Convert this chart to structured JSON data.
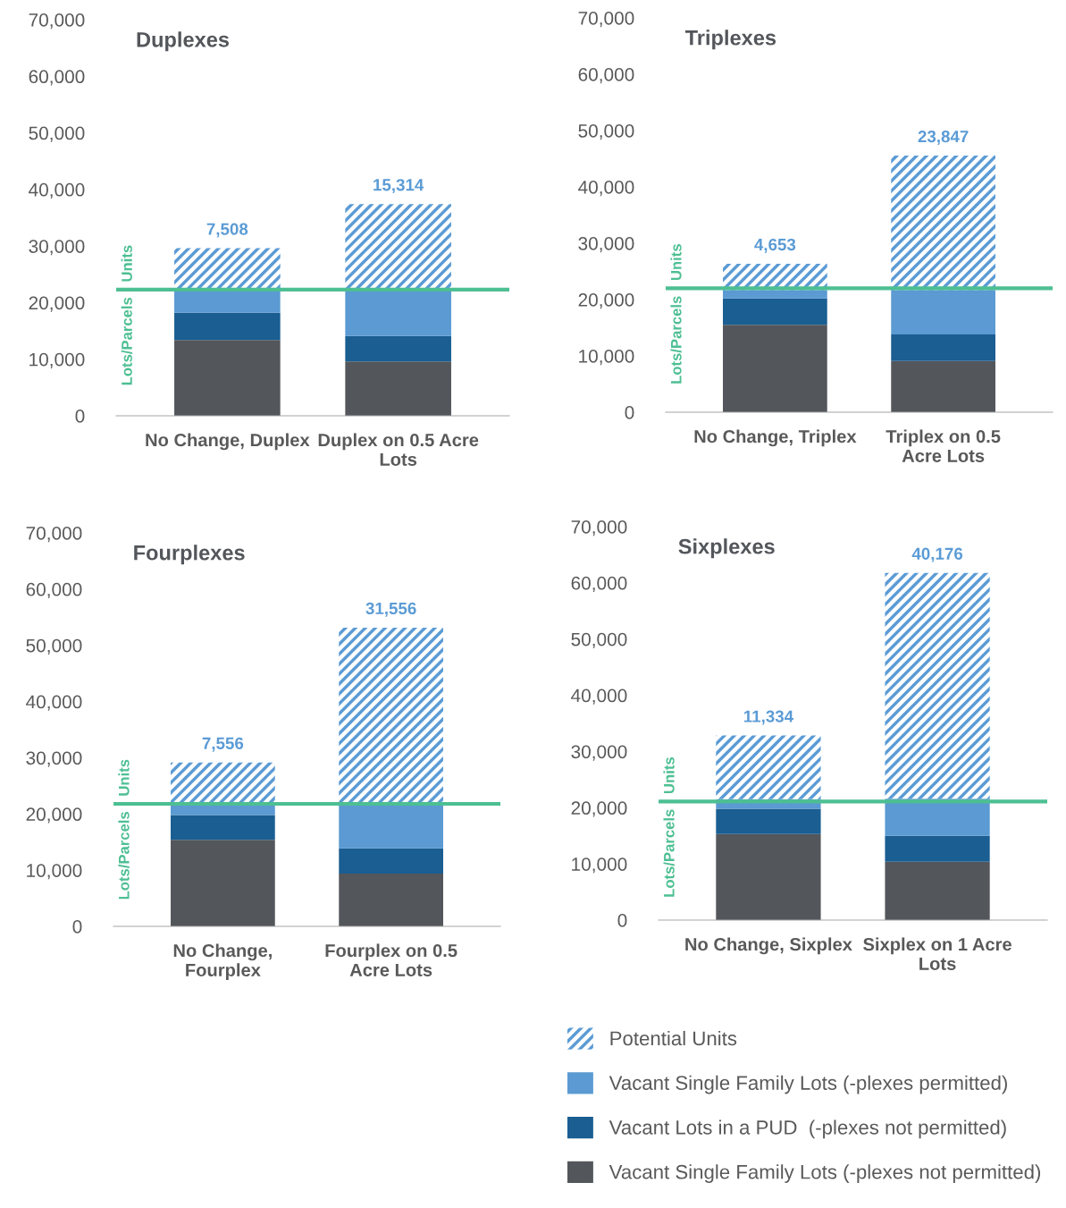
{
  "chart_data": [
    {
      "type": "bar",
      "title": "Duplexes",
      "categories": [
        "No Change, Duplex",
        "Duplex on 0.5 Acre Lots"
      ],
      "stacked": true,
      "ylim": [
        0,
        70000
      ],
      "yticks": [
        {
          "value": 0,
          "label": "0"
        },
        {
          "value": 10000,
          "label": "10,000"
        },
        {
          "value": 20000,
          "label": "20,000"
        },
        {
          "value": 30000,
          "label": "30,000"
        },
        {
          "value": 40000,
          "label": "40,000"
        },
        {
          "value": 50000,
          "label": "50,000"
        },
        {
          "value": 60000,
          "label": "60,000"
        },
        {
          "value": 70000,
          "label": "70,000"
        }
      ],
      "grid": false,
      "legend": "bottom right",
      "series": [
        {
          "name": "Vacant Single Family Lots (-plexes not permitted)",
          "color": "#53565a",
          "values": [
            13400,
            9600
          ]
        },
        {
          "name": "Vacant Lots in a PUD  (-plexes not permitted)",
          "color": "#1a5e92",
          "values": [
            4800,
            4500
          ]
        },
        {
          "name": "Vacant Single Family Lots (-plexes permitted)",
          "color": "#5b9ad2",
          "values": [
            3900,
            8000
          ]
        },
        {
          "name": "Potential Units",
          "color": "#5b9bd5",
          "values": [
            7508,
            15314
          ],
          "value_labels": [
            "7,508",
            "15,314"
          ]
        }
      ],
      "ref_lines": [
        {
          "axis": "y",
          "value": 22300,
          "color": "#4dbf93"
        }
      ],
      "annotations": [
        "Units",
        "Lots/Parcels"
      ]
    },
    {
      "type": "bar",
      "title": "Triplexes",
      "categories": [
        "No Change, Triplex",
        "Triplex on 0.5 Acre Lots"
      ],
      "stacked": true,
      "ylim": [
        0,
        70000
      ],
      "yticks": [
        {
          "value": 0,
          "label": "0"
        },
        {
          "value": 10000,
          "label": "10,000"
        },
        {
          "value": 20000,
          "label": "20,000"
        },
        {
          "value": 30000,
          "label": "30,000"
        },
        {
          "value": 40000,
          "label": "40,000"
        },
        {
          "value": 50000,
          "label": "50,000"
        },
        {
          "value": 60000,
          "label": "60,000"
        },
        {
          "value": 70000,
          "label": "70,000"
        }
      ],
      "grid": false,
      "series": [
        {
          "color": "#53565a",
          "values": [
            15500,
            9100
          ]
        },
        {
          "color": "#1a5e92",
          "values": [
            4700,
            4700
          ]
        },
        {
          "color": "#5b9ad2",
          "values": [
            1500,
            7900
          ]
        },
        {
          "color": "#5b9bd5",
          "values": [
            4653,
            23847
          ],
          "value_labels": [
            "4,653",
            "23,847"
          ]
        }
      ],
      "ref_lines": [
        {
          "axis": "y",
          "value": 22000,
          "color": "#4dbf93"
        }
      ],
      "annotations": [
        "Units",
        "Lots/Parcels"
      ]
    },
    {
      "type": "bar",
      "title": "Fourplexes",
      "categories": [
        "No Change, Fourplex",
        "Fourplex on 0.5 Acre Lots"
      ],
      "stacked": true,
      "ylim": [
        0,
        70000
      ],
      "yticks": [
        {
          "value": 0,
          "label": "0"
        },
        {
          "value": 10000,
          "label": "10,000"
        },
        {
          "value": 20000,
          "label": "20,000"
        },
        {
          "value": 30000,
          "label": "30,000"
        },
        {
          "value": 40000,
          "label": "40,000"
        },
        {
          "value": 50000,
          "label": "50,000"
        },
        {
          "value": 60000,
          "label": "60,000"
        },
        {
          "value": 70000,
          "label": "70,000"
        }
      ],
      "grid": false,
      "series": [
        {
          "color": "#53565a",
          "values": [
            15400,
            9400
          ]
        },
        {
          "color": "#1a5e92",
          "values": [
            4400,
            4500
          ]
        },
        {
          "color": "#5b9ad2",
          "values": [
            1800,
            7700
          ]
        },
        {
          "color": "#5b9bd5",
          "values": [
            7556,
            31556
          ],
          "value_labels": [
            "7,556",
            "31,556"
          ]
        }
      ],
      "ref_lines": [
        {
          "axis": "y",
          "value": 21800,
          "color": "#4dbf93"
        }
      ],
      "annotations": [
        "Units",
        "Lots/Parcels"
      ]
    },
    {
      "type": "bar",
      "title": "Sixplexes",
      "categories": [
        "No Change, Sixplex",
        "Sixplex on 1 Acre Lots"
      ],
      "stacked": true,
      "ylim": [
        0,
        70000
      ],
      "yticks": [
        {
          "value": 0,
          "label": "0"
        },
        {
          "value": 10000,
          "label": "10,000"
        },
        {
          "value": 20000,
          "label": "20,000"
        },
        {
          "value": 30000,
          "label": "30,000"
        },
        {
          "value": 40000,
          "label": "40,000"
        },
        {
          "value": 50000,
          "label": "50,000"
        },
        {
          "value": 60000,
          "label": "60,000"
        },
        {
          "value": 70000,
          "label": "70,000"
        }
      ],
      "grid": false,
      "series": [
        {
          "color": "#53565a",
          "values": [
            15300,
            10400
          ]
        },
        {
          "color": "#1a5e92",
          "values": [
            4500,
            4600
          ]
        },
        {
          "color": "#5b9ad2",
          "values": [
            1700,
            6600
          ]
        },
        {
          "color": "#5b9bd5",
          "values": [
            11334,
            40176
          ],
          "value_labels": [
            "11,334",
            "40,176"
          ]
        }
      ],
      "ref_lines": [
        {
          "axis": "y",
          "value": 21100,
          "color": "#4dbf93"
        }
      ],
      "annotations": [
        "Units",
        "Lots/Parcels"
      ]
    }
  ]
}
